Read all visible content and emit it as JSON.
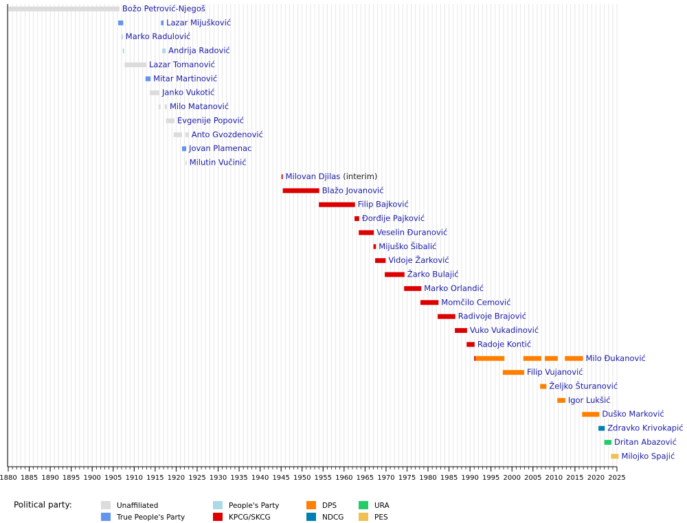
{
  "chart_data": {
    "type": "timeline",
    "xlim": [
      1880,
      2025
    ],
    "xticks": [
      1880,
      1885,
      1890,
      1895,
      1900,
      1905,
      1910,
      1915,
      1920,
      1925,
      1930,
      1935,
      1940,
      1945,
      1950,
      1955,
      1960,
      1965,
      1970,
      1975,
      1980,
      1985,
      1990,
      1995,
      2000,
      2005,
      2010,
      2015,
      2020,
      2025
    ],
    "grid_step": 1,
    "legend_title": "Political party:",
    "parties": [
      {
        "name": "Unaffiliated",
        "color": "#dcdcdc"
      },
      {
        "name": "True People's Party",
        "color": "#6495ed"
      },
      {
        "name": "People's Party",
        "color": "#add8e6"
      },
      {
        "name": "KPCG/SKCG",
        "color": "#dd0000"
      },
      {
        "name": "DPS",
        "color": "#ff8000"
      },
      {
        "name": "NDCG",
        "color": "#0080b0"
      },
      {
        "name": "URA",
        "color": "#22cc66"
      },
      {
        "name": "PES",
        "color": "#f0c050"
      }
    ],
    "rows": [
      {
        "name": "Božo Petrović-Njegoš",
        "terms": [
          {
            "start": 1880,
            "end": 1906.5,
            "party": "Unaffiliated"
          }
        ]
      },
      {
        "name": "Lazar Mijušković",
        "terms": [
          {
            "start": 1906.2,
            "end": 1907.4,
            "party": "True People's Party"
          },
          {
            "start": 1916.4,
            "end": 1917.0,
            "party": "True People's Party"
          }
        ]
      },
      {
        "name": "Marko Radulović",
        "terms": [
          {
            "start": 1907.0,
            "end": 1907.3,
            "party": "People's Party"
          }
        ]
      },
      {
        "name": "Andrija Radović",
        "terms": [
          {
            "start": 1907.3,
            "end": 1907.6,
            "party": "People's Party"
          },
          {
            "start": 1916.7,
            "end": 1917.5,
            "party": "People's Party"
          }
        ]
      },
      {
        "name": "Lazar Tomanović",
        "terms": [
          {
            "start": 1907.7,
            "end": 1912.9,
            "party": "Unaffiliated"
          }
        ]
      },
      {
        "name": "Mitar Martinović",
        "terms": [
          {
            "start": 1912.7,
            "end": 1913.9,
            "party": "True People's Party"
          }
        ]
      },
      {
        "name": "Janko Vukotić",
        "terms": [
          {
            "start": 1913.7,
            "end": 1916.0,
            "party": "Unaffiliated"
          }
        ]
      },
      {
        "name": "Milo Matanović",
        "terms": [
          {
            "start": 1915.8,
            "end": 1916.3,
            "party": "Unaffiliated"
          },
          {
            "start": 1917.3,
            "end": 1917.8,
            "party": "Unaffiliated"
          }
        ]
      },
      {
        "name": "Evgenije Popović",
        "terms": [
          {
            "start": 1917.6,
            "end": 1919.6,
            "party": "Unaffiliated"
          }
        ]
      },
      {
        "name": "Anto Gvozdenović",
        "terms": [
          {
            "start": 1919.4,
            "end": 1921.4,
            "party": "Unaffiliated"
          },
          {
            "start": 1922.2,
            "end": 1923.0,
            "party": "Unaffiliated"
          }
        ]
      },
      {
        "name": "Jovan Plamenac",
        "terms": [
          {
            "start": 1921.4,
            "end": 1922.4,
            "party": "True People's Party"
          }
        ]
      },
      {
        "name": "Milutin Vučinić",
        "terms": [
          {
            "start": 1922.2,
            "end": 1922.5,
            "party": "Unaffiliated"
          }
        ]
      },
      {
        "name": "Milovan Djilas",
        "note": "(interim)",
        "terms": [
          {
            "start": 1945.1,
            "end": 1945.4,
            "party": "KPCG/SKCG"
          }
        ]
      },
      {
        "name": "Blažo Jovanović",
        "terms": [
          {
            "start": 1945.4,
            "end": 1954.1,
            "party": "KPCG/SKCG"
          }
        ]
      },
      {
        "name": "Filip Bajković",
        "terms": [
          {
            "start": 1954.0,
            "end": 1962.6,
            "party": "KPCG/SKCG"
          }
        ]
      },
      {
        "name": "Đorđije Pajković",
        "terms": [
          {
            "start": 1962.5,
            "end": 1963.6,
            "party": "KPCG/SKCG"
          }
        ]
      },
      {
        "name": "Veselin Đuranović",
        "terms": [
          {
            "start": 1963.5,
            "end": 1967.1,
            "party": "KPCG/SKCG"
          }
        ]
      },
      {
        "name": "Mijuško Šibalić",
        "terms": [
          {
            "start": 1967.0,
            "end": 1967.6,
            "party": "KPCG/SKCG"
          }
        ]
      },
      {
        "name": "Vidoje Žarković",
        "terms": [
          {
            "start": 1967.4,
            "end": 1969.9,
            "party": "KPCG/SKCG"
          }
        ]
      },
      {
        "name": "Žarko Bulajić",
        "terms": [
          {
            "start": 1969.7,
            "end": 1974.4,
            "party": "KPCG/SKCG"
          }
        ]
      },
      {
        "name": "Marko Orlandić",
        "terms": [
          {
            "start": 1974.3,
            "end": 1978.4,
            "party": "KPCG/SKCG"
          }
        ]
      },
      {
        "name": "Momčilo Cemović",
        "terms": [
          {
            "start": 1978.2,
            "end": 1982.5,
            "party": "KPCG/SKCG"
          }
        ]
      },
      {
        "name": "Radivoje Brajović",
        "terms": [
          {
            "start": 1982.3,
            "end": 1986.5,
            "party": "KPCG/SKCG"
          }
        ]
      },
      {
        "name": "Vuko Vukadinović",
        "terms": [
          {
            "start": 1986.4,
            "end": 1989.3,
            "party": "KPCG/SKCG"
          }
        ]
      },
      {
        "name": "Radoje Kontić",
        "terms": [
          {
            "start": 1989.2,
            "end": 1991.1,
            "party": "KPCG/SKCG"
          }
        ]
      },
      {
        "name": "Milo Đukanović",
        "terms": [
          {
            "start": 1991.0,
            "end": 1991.3,
            "party": "KPCG/SKCG"
          },
          {
            "start": 1991.3,
            "end": 1998.2,
            "party": "DPS"
          },
          {
            "start": 2002.7,
            "end": 2007.0,
            "party": "DPS"
          },
          {
            "start": 2007.8,
            "end": 2010.9,
            "party": "DPS"
          },
          {
            "start": 2012.6,
            "end": 2016.9,
            "party": "DPS"
          }
        ]
      },
      {
        "name": "Filip Vujanović",
        "terms": [
          {
            "start": 1997.8,
            "end": 2002.9,
            "party": "DPS"
          }
        ]
      },
      {
        "name": "Željko Šturanović",
        "terms": [
          {
            "start": 2006.7,
            "end": 2008.2,
            "party": "DPS"
          }
        ]
      },
      {
        "name": "Igor Lukšić",
        "terms": [
          {
            "start": 2010.8,
            "end": 2012.7,
            "party": "DPS"
          }
        ]
      },
      {
        "name": "Duško Marković",
        "terms": [
          {
            "start": 2016.7,
            "end": 2020.8,
            "party": "DPS"
          }
        ]
      },
      {
        "name": "Zdravko Krivokapić",
        "terms": [
          {
            "start": 2020.6,
            "end": 2022.1,
            "party": "NDCG"
          }
        ]
      },
      {
        "name": "Dritan Abazović",
        "terms": [
          {
            "start": 2022.0,
            "end": 2023.7,
            "party": "URA"
          }
        ]
      },
      {
        "name": "Milojko Spajić",
        "terms": [
          {
            "start": 2023.6,
            "end": 2025.4,
            "party": "PES"
          }
        ]
      }
    ]
  }
}
